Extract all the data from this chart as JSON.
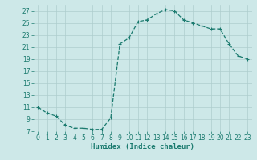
{
  "x": [
    0,
    1,
    2,
    3,
    4,
    5,
    6,
    7,
    8,
    9,
    10,
    11,
    12,
    13,
    14,
    15,
    16,
    17,
    18,
    19,
    20,
    21,
    22,
    23
  ],
  "y": [
    11,
    10,
    9.5,
    8,
    7.5,
    7.5,
    7.3,
    7.3,
    9.2,
    21.5,
    22.5,
    25.2,
    25.5,
    26.5,
    27.2,
    27.0,
    25.5,
    25.0,
    24.5,
    24.0,
    24.0,
    21.5,
    19.5,
    19.0
  ],
  "line_color": "#1a7a6e",
  "marker": "+",
  "marker_size": 3,
  "marker_lw": 0.8,
  "background_color": "#cde8e8",
  "grid_color": "#aecdcd",
  "xlabel": "Humidex (Indice chaleur)",
  "ylabel": "",
  "xlim": [
    -0.5,
    23.5
  ],
  "ylim": [
    7,
    28
  ],
  "yticks": [
    7,
    9,
    11,
    13,
    15,
    17,
    19,
    21,
    23,
    25,
    27
  ],
  "xticks": [
    0,
    1,
    2,
    3,
    4,
    5,
    6,
    7,
    8,
    9,
    10,
    11,
    12,
    13,
    14,
    15,
    16,
    17,
    18,
    19,
    20,
    21,
    22,
    23
  ],
  "xlabel_fontsize": 6.5,
  "tick_fontsize": 5.5,
  "linewidth": 0.9
}
